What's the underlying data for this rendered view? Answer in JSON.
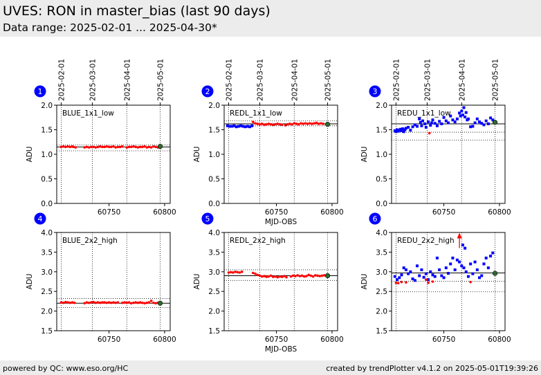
{
  "header": {
    "title": "UVES: RON in master_bias (last 90 days)",
    "subtitle": "Data range: 2025-02-01 ... 2025-04-30*"
  },
  "footer": {
    "left": "powered by QC: www.eso.org/HC",
    "right": "created by trendPlotter v4.1.2 on 2025-05-01T19:39:26"
  },
  "colors": {
    "blue_marker": "#0000ff",
    "red_marker": "#ff0000",
    "dark_red_marker": "#cc0000",
    "last_point": "#2e6b2e",
    "badge": "#0000ff",
    "header_bg": "#ececec"
  },
  "date_ticks": [
    "2025-02-01",
    "2025-03-01",
    "2025-04-01",
    "2025-05-01"
  ],
  "chart_data": [
    {
      "type": "scatter",
      "index": "1",
      "label": "BLUE_1x1_low",
      "ylabel": "ADU",
      "xlabel": "",
      "xticks": [
        60750,
        60800
      ],
      "ylim": [
        0.0,
        2.0
      ],
      "yticks": [
        "0.0",
        "0.5",
        "1.0",
        "1.5",
        "2.0"
      ],
      "hlines": [
        {
          "y": 1.15,
          "style": "solid"
        },
        {
          "y": 1.19,
          "style": "dotted"
        },
        {
          "y": 1.07,
          "style": "dotted"
        }
      ],
      "series": [
        {
          "color": "red",
          "x": [
            60707,
            60709,
            60711,
            60713,
            60715,
            60717,
            60718,
            60720,
            60728,
            60730,
            60732,
            60734,
            60736,
            60738,
            60740,
            60742,
            60744,
            60746,
            60748,
            60750,
            60752,
            60754,
            60756,
            60758,
            60760,
            60762,
            60766,
            60768,
            60770,
            60772,
            60774,
            60776,
            60778,
            60780,
            60782,
            60784,
            60786,
            60788,
            60790,
            60792,
            60794
          ],
          "y": [
            1.15,
            1.16,
            1.15,
            1.16,
            1.15,
            1.16,
            1.15,
            1.14,
            1.14,
            1.15,
            1.14,
            1.15,
            1.15,
            1.14,
            1.15,
            1.16,
            1.15,
            1.15,
            1.16,
            1.15,
            1.15,
            1.16,
            1.14,
            1.15,
            1.15,
            1.16,
            1.14,
            1.15,
            1.15,
            1.16,
            1.15,
            1.14,
            1.15,
            1.15,
            1.16,
            1.14,
            1.15,
            1.14,
            1.16,
            1.15,
            1.14
          ]
        }
      ],
      "last_point": {
        "x": 60796,
        "y": 1.16
      },
      "outliers": []
    },
    {
      "type": "scatter",
      "index": "2",
      "label": "REDL_1x1_low",
      "ylabel": "ADU",
      "xlabel": "MJD-OBS",
      "xticks": [
        60750,
        60800
      ],
      "ylim": [
        0.0,
        2.0
      ],
      "yticks": [
        "0.0",
        "0.5",
        "1.0",
        "1.5",
        "2.0"
      ],
      "hlines": [
        {
          "y": 1.62,
          "style": "solid"
        },
        {
          "y": 1.68,
          "style": "dotted"
        },
        {
          "y": 1.58,
          "style": "dotted"
        }
      ],
      "series": [
        {
          "color": "blue",
          "x": [
            60706,
            60708,
            60710,
            60712,
            60714,
            60716,
            60718,
            60720,
            60722,
            60724,
            60726,
            60728
          ],
          "y": [
            1.58,
            1.57,
            1.57,
            1.58,
            1.56,
            1.57,
            1.58,
            1.57,
            1.56,
            1.57,
            1.56,
            1.58
          ]
        },
        {
          "color": "red",
          "x": [
            60729,
            60731,
            60733,
            60735,
            60737,
            60739,
            60741,
            60743,
            60745,
            60747,
            60749,
            60751,
            60753,
            60755,
            60758,
            60760,
            60762,
            60764,
            60766,
            60768,
            60770,
            60772,
            60774,
            60776,
            60778,
            60780,
            60782,
            60784,
            60786,
            60788,
            60790,
            60792
          ],
          "y": [
            1.66,
            1.63,
            1.62,
            1.61,
            1.62,
            1.6,
            1.61,
            1.62,
            1.61,
            1.6,
            1.61,
            1.62,
            1.61,
            1.6,
            1.59,
            1.61,
            1.62,
            1.61,
            1.63,
            1.62,
            1.61,
            1.63,
            1.62,
            1.63,
            1.62,
            1.63,
            1.62,
            1.63,
            1.64,
            1.62,
            1.63,
            1.62
          ]
        }
      ],
      "last_point": {
        "x": 60796,
        "y": 1.61
      },
      "outliers": []
    },
    {
      "type": "scatter",
      "index": "3",
      "label": "REDU_1x1_low",
      "ylabel": "ADU",
      "xlabel": "",
      "xticks": [
        60750,
        60800
      ],
      "ylim": [
        0.0,
        2.0
      ],
      "yticks": [
        "0.0",
        "0.5",
        "1.0",
        "1.5",
        "2.0"
      ],
      "hlines": [
        {
          "y": 1.62,
          "style": "solid"
        },
        {
          "y": 1.45,
          "style": "dotted"
        },
        {
          "y": 1.29,
          "style": "dotted"
        }
      ],
      "series": [
        {
          "color": "blue",
          "x": [
            60706,
            60707,
            60708,
            60709,
            60710,
            60711,
            60712,
            60713,
            60714,
            60715,
            60716,
            60718,
            60720,
            60722,
            60724,
            60726,
            60728,
            60729,
            60730,
            60731,
            60733,
            60734,
            60736,
            60738,
            60739,
            60740,
            60742,
            60744,
            60746,
            60748,
            60750,
            60752,
            60754,
            60756,
            60758,
            60760,
            60762,
            60764,
            60765,
            60766,
            60767,
            60768,
            60769,
            60770,
            60771,
            60772,
            60774,
            60776,
            60778,
            60780,
            60782,
            60784,
            60786,
            60788,
            60790,
            60792,
            60794
          ],
          "y": [
            1.48,
            1.46,
            1.5,
            1.47,
            1.49,
            1.51,
            1.48,
            1.52,
            1.46,
            1.5,
            1.53,
            1.55,
            1.49,
            1.56,
            1.6,
            1.57,
            1.72,
            1.65,
            1.58,
            1.68,
            1.62,
            1.55,
            1.66,
            1.59,
            1.64,
            1.7,
            1.63,
            1.58,
            1.67,
            1.62,
            1.75,
            1.68,
            1.64,
            1.78,
            1.7,
            1.66,
            1.72,
            1.84,
            1.78,
            1.88,
            1.8,
            1.95,
            1.76,
            1.85,
            1.7,
            1.72,
            1.56,
            1.57,
            1.64,
            1.72,
            1.66,
            1.63,
            1.6,
            1.68,
            1.62,
            1.74,
            1.7
          ]
        },
        {
          "color": "red",
          "x": [
            60737
          ],
          "y": [
            1.43
          ]
        }
      ],
      "last_point": {
        "x": 60796,
        "y": 1.65
      },
      "outliers": []
    },
    {
      "type": "scatter",
      "index": "4",
      "label": "BLUE_2x2_high",
      "ylabel": "ADU",
      "xlabel": "",
      "xticks": [
        60750,
        60800
      ],
      "ylim": [
        1.5,
        4.0
      ],
      "yticks": [
        "1.5",
        "2.0",
        "2.5",
        "3.0",
        "3.5",
        "4.0"
      ],
      "hlines": [
        {
          "y": 2.2,
          "style": "solid"
        },
        {
          "y": 2.32,
          "style": "dotted"
        },
        {
          "y": 2.09,
          "style": "dotted"
        }
      ],
      "series": [
        {
          "color": "red",
          "x": [
            60707,
            60709,
            60711,
            60713,
            60715,
            60717,
            60719,
            60728,
            60730,
            60732,
            60734,
            60736,
            60738,
            60740,
            60742,
            60744,
            60746,
            60748,
            60750,
            60752,
            60754,
            60756,
            60758,
            60762,
            60764,
            60766,
            60768,
            60770,
            60772,
            60774,
            60776,
            60778,
            60780,
            60782,
            60784,
            60786,
            60790,
            60792,
            60794
          ],
          "y": [
            2.22,
            2.21,
            2.23,
            2.22,
            2.21,
            2.22,
            2.21,
            2.2,
            2.22,
            2.21,
            2.22,
            2.23,
            2.21,
            2.22,
            2.21,
            2.22,
            2.22,
            2.21,
            2.22,
            2.21,
            2.22,
            2.21,
            2.22,
            2.21,
            2.22,
            2.21,
            2.22,
            2.2,
            2.21,
            2.22,
            2.21,
            2.22,
            2.21,
            2.2,
            2.21,
            2.22,
            2.21,
            2.2,
            2.21
          ]
        },
        {
          "color": "red",
          "x": [
            60788
          ],
          "y": [
            2.26
          ]
        }
      ],
      "last_point": {
        "x": 60796,
        "y": 2.2
      },
      "outliers": []
    },
    {
      "type": "scatter",
      "index": "5",
      "label": "REDL_2x2_high",
      "ylabel": "ADU",
      "xlabel": "MJD-OBS",
      "xticks": [
        60750,
        60800
      ],
      "ylim": [
        1.5,
        4.0
      ],
      "yticks": [
        "1.5",
        "2.0",
        "2.5",
        "3.0",
        "3.5",
        "4.0"
      ],
      "hlines": [
        {
          "y": 2.9,
          "style": "solid"
        },
        {
          "y": 3.05,
          "style": "dotted"
        },
        {
          "y": 2.78,
          "style": "dotted"
        }
      ],
      "series": [
        {
          "color": "red",
          "x": [
            60707,
            60709,
            60711,
            60713,
            60715,
            60717,
            60719,
            60729,
            60731,
            60733,
            60735,
            60737,
            60739,
            60741,
            60743,
            60745,
            60747,
            60749,
            60751,
            60753,
            60755,
            60757,
            60759,
            60763,
            60765,
            60767,
            60769,
            60771,
            60773,
            60775,
            60777,
            60779,
            60781,
            60783,
            60785,
            60787,
            60789,
            60791,
            60793
          ],
          "y": [
            2.98,
            2.99,
            2.98,
            3.0,
            2.99,
            2.98,
            3.0,
            2.97,
            2.95,
            2.92,
            2.9,
            2.88,
            2.89,
            2.87,
            2.88,
            2.9,
            2.87,
            2.88,
            2.86,
            2.88,
            2.87,
            2.89,
            2.86,
            2.88,
            2.9,
            2.89,
            2.91,
            2.89,
            2.9,
            2.88,
            2.89,
            2.92,
            2.9,
            2.88,
            2.91,
            2.9,
            2.89,
            2.9,
            2.91
          ]
        }
      ],
      "last_point": {
        "x": 60796,
        "y": 2.9
      },
      "outliers": []
    },
    {
      "type": "scatter",
      "index": "6",
      "label": "REDU_2x2_high",
      "ylabel": "ADU",
      "xlabel": "",
      "xticks": [
        60750,
        60800
      ],
      "ylim": [
        1.5,
        4.0
      ],
      "yticks": [
        "1.5",
        "2.0",
        "2.5",
        "3.0",
        "3.5",
        "4.0"
      ],
      "hlines": [
        {
          "y": 2.97,
          "style": "solid"
        },
        {
          "y": 2.76,
          "style": "dotted"
        },
        {
          "y": 2.49,
          "style": "dotted"
        }
      ],
      "series": [
        {
          "color": "blue",
          "x": [
            60706,
            60708,
            60710,
            60712,
            60714,
            60716,
            60718,
            60720,
            60722,
            60724,
            60726,
            60728,
            60730,
            60732,
            60734,
            60736,
            60738,
            60740,
            60742,
            60744,
            60746,
            60748,
            60750,
            60752,
            60754,
            60756,
            60758,
            60760,
            60762,
            60764,
            60766,
            60767,
            60768,
            60769,
            60770,
            60772,
            60774,
            60776,
            60778,
            60780,
            60782,
            60784,
            60786,
            60788,
            60790,
            60792,
            60794
          ],
          "y": [
            2.88,
            2.8,
            2.85,
            2.92,
            3.1,
            3.05,
            2.95,
            3.0,
            2.82,
            2.78,
            3.15,
            2.9,
            3.05,
            2.86,
            2.95,
            2.8,
            3.0,
            2.92,
            2.88,
            3.35,
            3.05,
            2.9,
            2.85,
            3.1,
            2.96,
            3.2,
            3.35,
            3.05,
            3.3,
            3.25,
            3.15,
            3.68,
            3.1,
            3.6,
            3.0,
            2.88,
            3.2,
            2.95,
            3.25,
            3.05,
            2.85,
            2.9,
            3.2,
            3.35,
            3.1,
            3.4,
            3.48
          ]
        },
        {
          "color": "red",
          "x": [
            60707,
            60709,
            60712,
            60716,
            60734,
            60736,
            60740,
            60774
          ],
          "y": [
            2.72,
            2.71,
            2.74,
            2.73,
            2.8,
            2.72,
            2.75,
            2.74
          ]
        }
      ],
      "last_point": {
        "x": 60796,
        "y": 2.96
      },
      "outliers": [
        {
          "x": 60764,
          "y": 3.92
        }
      ]
    }
  ]
}
